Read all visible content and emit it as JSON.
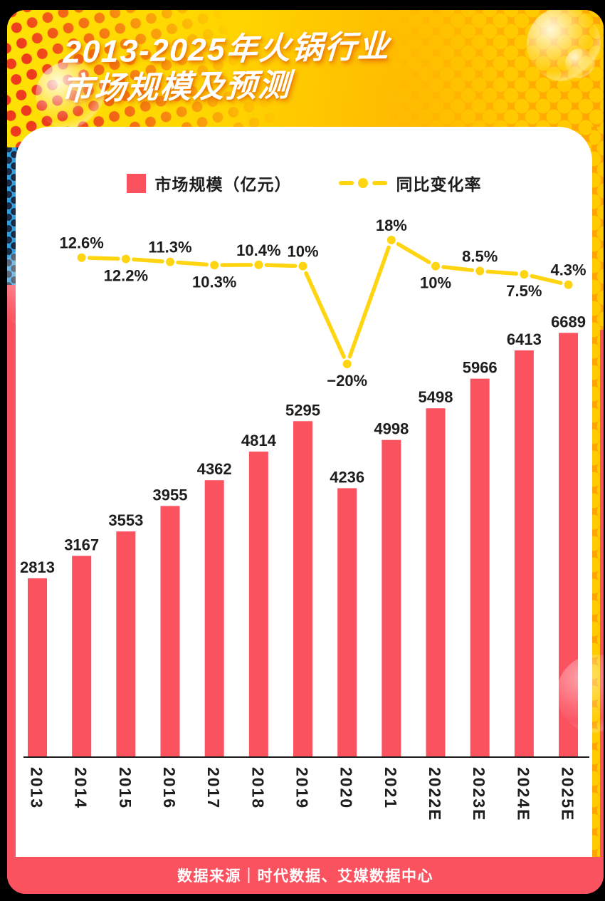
{
  "title": {
    "line1": "2013-2025年火锅行业",
    "line2": "市场规模及预测"
  },
  "legend": {
    "bar_label": "市场规模（亿元）",
    "line_label": "同比变化率"
  },
  "footer": {
    "source_text": "数据来源｜时代数据、艾媒数据中心"
  },
  "colors": {
    "bar": "#FB5260",
    "line": "#FFD511",
    "header_yellow": "#FFD400",
    "header_orange": "#FFA402",
    "halftone_red": "#EE3A1E",
    "strip_blue": "#2FA0E4",
    "text_dark": "#1d1d1d",
    "footer_red": "#FB5260"
  },
  "chart_data": {
    "type": "bar",
    "title": "2013-2025年火锅行业市场规模及预测",
    "categories": [
      "2013",
      "2014",
      "2015",
      "2016",
      "2017",
      "2018",
      "2019",
      "2020",
      "2021",
      "2022E",
      "2023E",
      "2024E",
      "2025E"
    ],
    "xlabel": "",
    "ylabel": "市场规模（亿元）",
    "grid": false,
    "legend_position": "top",
    "series": [
      {
        "name": "市场规模（亿元）",
        "type": "bar",
        "values": [
          2813,
          3167,
          3553,
          3955,
          4362,
          4814,
          5295,
          4236,
          4998,
          5498,
          5966,
          6413,
          6689
        ]
      },
      {
        "name": "同比变化率",
        "type": "line",
        "start_index": 1,
        "values": [
          12.6,
          12.2,
          11.3,
          10.3,
          10.4,
          10,
          -20,
          18,
          10,
          8.5,
          7.5,
          4.3
        ],
        "labels": [
          "12.6%",
          "12.2%",
          "11.3%",
          "10.3%",
          "10.4%",
          "10%",
          "−20%",
          "18%",
          "10%",
          "8.5%",
          "7.5%",
          "4.3%"
        ],
        "label_positions": [
          "above",
          "below",
          "above",
          "below",
          "above",
          "above",
          "below",
          "above",
          "below",
          "above",
          "below",
          "above"
        ]
      }
    ]
  }
}
